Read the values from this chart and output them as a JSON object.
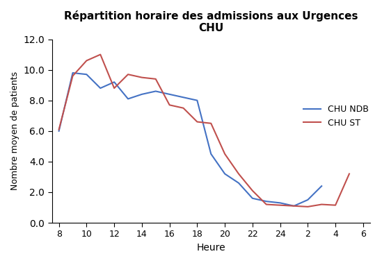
{
  "title_line1": "Répartition horaire des admissions aux Urgences",
  "title_line2": "CHU",
  "xlabel": "Heure",
  "ylabel": "Nombre moyen de patients",
  "x_labels": [
    "8",
    "10",
    "12",
    "14",
    "16",
    "18",
    "20",
    "22",
    "24",
    "2",
    "4",
    "6"
  ],
  "chu_ndb": [
    6.0,
    9.8,
    9.7,
    8.8,
    9.2,
    8.1,
    8.4,
    8.6,
    8.4,
    8.2,
    8.0,
    4.5,
    3.2,
    2.6,
    1.6,
    1.4,
    1.3,
    1.1,
    1.5,
    2.4
  ],
  "chu_st": [
    6.1,
    9.6,
    10.6,
    11.0,
    8.8,
    9.7,
    9.5,
    9.4,
    7.7,
    7.5,
    6.6,
    6.5,
    4.5,
    3.2,
    2.1,
    1.2,
    1.15,
    1.1,
    1.05,
    1.2,
    1.15,
    3.2
  ],
  "ndb_x": [
    0,
    1,
    2,
    3,
    4,
    5,
    6,
    7,
    8,
    9,
    10,
    11,
    12,
    13,
    14,
    15,
    16,
    17,
    18,
    19
  ],
  "st_x": [
    0,
    1,
    2,
    3,
    4,
    5,
    6,
    7,
    8,
    9,
    10,
    11,
    12,
    13,
    14,
    15,
    16,
    17,
    18,
    19,
    20,
    21
  ],
  "tick_positions": [
    0,
    2,
    4,
    6,
    8,
    10,
    12,
    14,
    16,
    18,
    20,
    22
  ],
  "color_ndb": "#4472C4",
  "color_st": "#C0504D",
  "ylim": [
    0,
    12.0
  ],
  "yticks": [
    0.0,
    2.0,
    4.0,
    6.0,
    8.0,
    10.0,
    12.0
  ],
  "background_color": "#FFFFFF",
  "legend_ndb": "CHU NDB",
  "legend_st": "CHU ST"
}
